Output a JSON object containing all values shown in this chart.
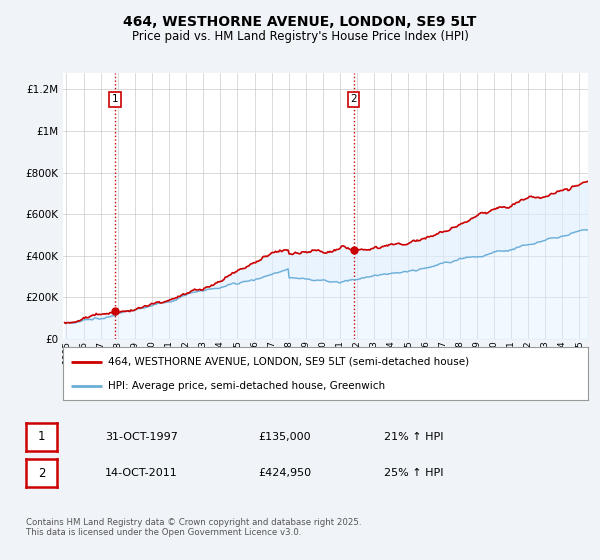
{
  "title": "464, WESTHORNE AVENUE, LONDON, SE9 5LT",
  "subtitle": "Price paid vs. HM Land Registry's House Price Index (HPI)",
  "ylabel_ticks": [
    "£0",
    "£200K",
    "£400K",
    "£600K",
    "£800K",
    "£1M",
    "£1.2M"
  ],
  "ytick_vals": [
    0,
    200000,
    400000,
    600000,
    800000,
    1000000,
    1200000
  ],
  "ylim": [
    0,
    1280000
  ],
  "xlim_start": 1994.8,
  "xlim_end": 2025.5,
  "xtick_years": [
    1995,
    1996,
    1997,
    1998,
    1999,
    2000,
    2001,
    2002,
    2003,
    2004,
    2005,
    2006,
    2007,
    2008,
    2009,
    2010,
    2011,
    2012,
    2013,
    2014,
    2015,
    2016,
    2017,
    2018,
    2019,
    2020,
    2021,
    2022,
    2023,
    2024,
    2025
  ],
  "sale1_x": 1997.83,
  "sale1_y": 135000,
  "sale1_label": "1",
  "sale1_date": "31-OCT-1997",
  "sale1_price": "£135,000",
  "sale1_hpi": "21% ↑ HPI",
  "sale2_x": 2011.79,
  "sale2_y": 424950,
  "sale2_label": "2",
  "sale2_date": "14-OCT-2011",
  "sale2_price": "£424,950",
  "sale2_hpi": "25% ↑ HPI",
  "vline_color": "#cc0000",
  "vline_style": ":",
  "hpi_line_color": "#6baed6",
  "price_line_color": "#cc0000",
  "hpi_fill_color": "#ddeeff",
  "legend_label1": "464, WESTHORNE AVENUE, LONDON, SE9 5LT (semi-detached house)",
  "legend_label2": "HPI: Average price, semi-detached house, Greenwich",
  "footer": "Contains HM Land Registry data © Crown copyright and database right 2025.\nThis data is licensed under the Open Government Licence v3.0.",
  "bg_color": "#f0f4f8",
  "plot_bg_color": "#ffffff",
  "grid_color": "#cccccc"
}
